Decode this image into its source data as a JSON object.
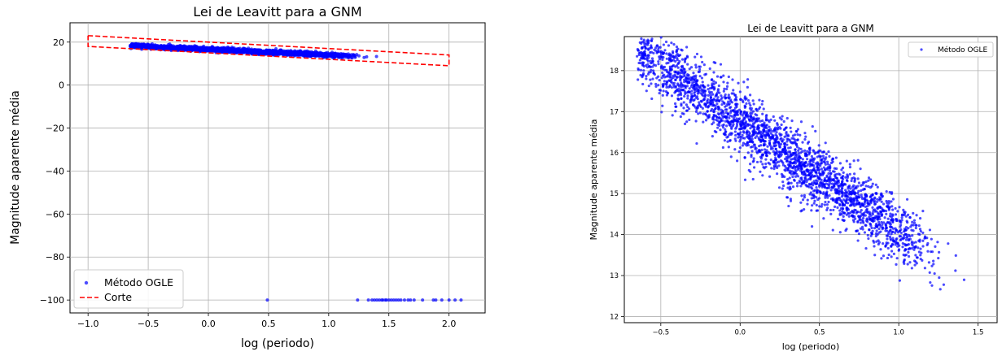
{
  "chart_data": [
    {
      "type": "scatter",
      "title": "Lei de Leavitt para a GNM",
      "xlabel": "log (periodo)",
      "ylabel": "Magnitude aparente média",
      "xlim": [
        -1.15,
        2.3
      ],
      "ylim": [
        -106,
        29
      ],
      "xticks": [
        -1.0,
        -0.5,
        0.0,
        0.5,
        1.0,
        1.5,
        2.0
      ],
      "xtick_labels": [
        "−1.0",
        "−0.5",
        "0.0",
        "0.5",
        "1.0",
        "1.5",
        "2.0"
      ],
      "yticks": [
        20,
        0,
        -20,
        -40,
        -60,
        -80,
        -100
      ],
      "ytick_labels": [
        "20",
        "0",
        "−20",
        "−40",
        "−60",
        "−80",
        "−100"
      ],
      "grid": true,
      "legend_position": "lower-left",
      "series": [
        {
          "name": "Método OGLE",
          "kind": "scatter",
          "color": "#0000ff",
          "trend": {
            "x_start": -0.65,
            "x_end": 1.55,
            "y_start": 18.3,
            "y_end": 12.6,
            "scatter": 0.5
          },
          "outliers_x": [
            0.49,
            1.24,
            1.33,
            1.36,
            1.38,
            1.4,
            1.42,
            1.44,
            1.45,
            1.47,
            1.48,
            1.5,
            1.52,
            1.54,
            1.56,
            1.58,
            1.6,
            1.63,
            1.66,
            1.68,
            1.71,
            1.78,
            1.87,
            1.89,
            1.94,
            2.0,
            2.05,
            2.1
          ],
          "outliers_y": -100
        },
        {
          "name": "Corte",
          "kind": "dashed-polygon",
          "color": "#ff0000",
          "x": [
            -1.0,
            2.0,
            2.0,
            -1.0,
            -1.0
          ],
          "y": [
            23.0,
            14.0,
            9.0,
            18.0,
            23.0
          ]
        }
      ]
    },
    {
      "type": "scatter",
      "title": "Lei de Leavitt para a GNM",
      "xlabel": "log (periodo)",
      "ylabel": "Magnitude aparente média",
      "xlim": [
        -0.73,
        1.62
      ],
      "ylim": [
        11.85,
        18.83
      ],
      "xticks": [
        -0.5,
        0.0,
        0.5,
        1.0,
        1.5
      ],
      "xtick_labels": [
        "−0.5",
        "0.0",
        "0.5",
        "1.0",
        "1.5"
      ],
      "yticks": [
        12,
        13,
        14,
        15,
        16,
        17,
        18
      ],
      "ytick_labels": [
        "12",
        "13",
        "14",
        "15",
        "16",
        "17",
        "18"
      ],
      "grid": true,
      "legend_position": "top-right",
      "series": [
        {
          "name": "Método OGLE",
          "kind": "scatter",
          "color": "#0000ff",
          "trend": {
            "x_start": -0.65,
            "x_end": 1.55,
            "y_start": 18.5,
            "y_end": 12.6,
            "scatter": 0.38
          }
        }
      ]
    }
  ]
}
